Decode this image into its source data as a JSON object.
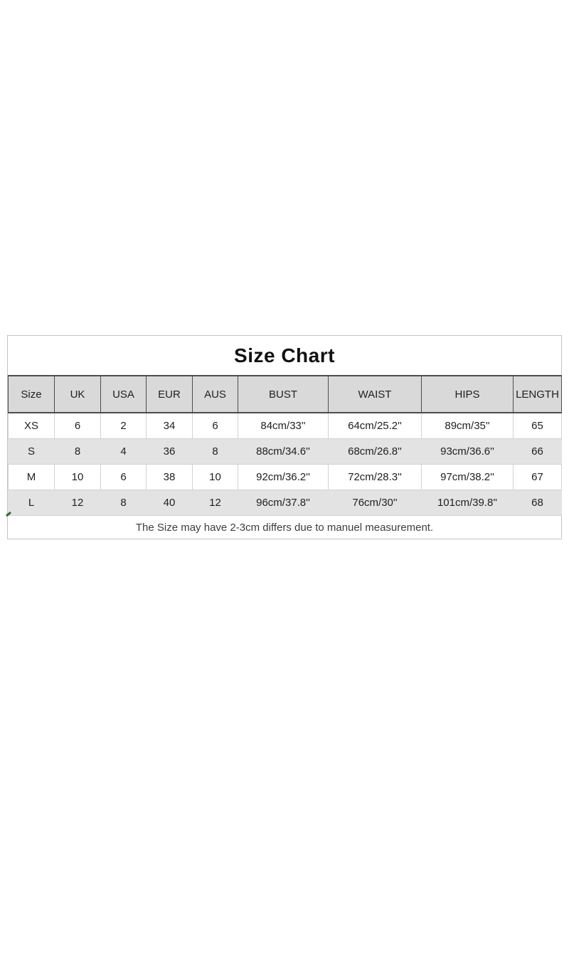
{
  "chart_data": {
    "type": "table",
    "title": "Size Chart",
    "columns": [
      "Size",
      "UK",
      "USA",
      "EUR",
      "AUS",
      "BUST",
      "WAIST",
      "HIPS",
      "LENGTH"
    ],
    "rows": [
      [
        "XS",
        "6",
        "2",
        "34",
        "6",
        "84cm/33''",
        "64cm/25.2''",
        "89cm/35''",
        "65"
      ],
      [
        "S",
        "8",
        "4",
        "36",
        "8",
        "88cm/34.6''",
        "68cm/26.8''",
        "93cm/36.6''",
        "66"
      ],
      [
        "M",
        "10",
        "6",
        "38",
        "10",
        "92cm/36.2''",
        "72cm/28.3''",
        "97cm/38.2''",
        "67"
      ],
      [
        "L",
        "12",
        "8",
        "40",
        "12",
        "96cm/37.8''",
        "76cm/30''",
        "101cm/39.8''",
        "68"
      ]
    ],
    "note": "The Size may have 2-3cm differs due to manuel measurement.",
    "layout": {
      "striped_row_indices": [
        1,
        3
      ],
      "grid": true,
      "header_position": "top"
    }
  },
  "colors": {
    "header_background": "#d9d9d9",
    "stripe_background": "#e3e3e3",
    "header_border": "#4d4d4d",
    "cell_border": "#d2d2d2",
    "outer_border": "#c3c3c3",
    "text": "#1f1f1f",
    "note_text": "#3d3d3d",
    "artifact_green": "#2c6e31"
  },
  "artifact": {
    "description": "tiny green tick mark at left edge"
  }
}
